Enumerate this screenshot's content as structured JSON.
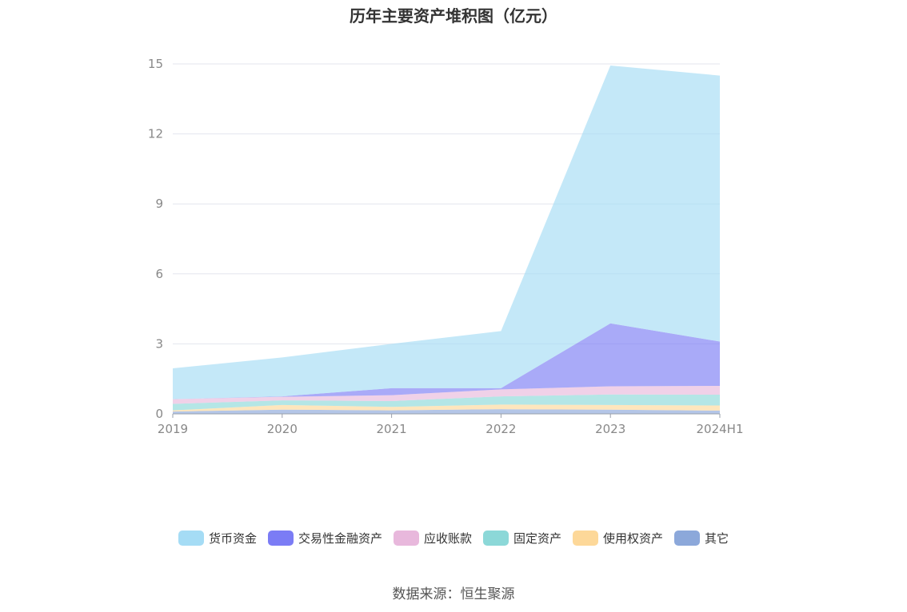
{
  "chart_data": {
    "type": "area",
    "stacked": true,
    "title": "历年主要资产堆积图（亿元）",
    "categories": [
      "2019",
      "2020",
      "2021",
      "2022",
      "2023",
      "2024H1"
    ],
    "ylim": [
      0,
      15
    ],
    "yticks": [
      0,
      3,
      6,
      9,
      12,
      15
    ],
    "grid": true,
    "legend_position": "bottom",
    "series": [
      {
        "name": "其它",
        "color": "#8ca8da",
        "values": [
          0.1,
          0.18,
          0.15,
          0.2,
          0.18,
          0.14
        ]
      },
      {
        "name": "使用权资产",
        "color": "#fdd899",
        "values": [
          0.05,
          0.2,
          0.15,
          0.2,
          0.2,
          0.22
        ]
      },
      {
        "name": "固定资产",
        "color": "#8cd8d8",
        "values": [
          0.28,
          0.2,
          0.25,
          0.35,
          0.45,
          0.46
        ]
      },
      {
        "name": "应收账款",
        "color": "#e8b8dc",
        "values": [
          0.2,
          0.15,
          0.25,
          0.3,
          0.35,
          0.38
        ]
      },
      {
        "name": "交易性金融资产",
        "color": "#7b7cf5",
        "values": [
          0.0,
          0.02,
          0.3,
          0.05,
          2.7,
          1.9
        ]
      },
      {
        "name": "货币资金",
        "color": "#a5dcf5",
        "values": [
          1.32,
          1.67,
          1.9,
          2.45,
          11.05,
          11.4
        ]
      }
    ],
    "legend_order": [
      "货币资金",
      "交易性金融资产",
      "应收账款",
      "固定资产",
      "使用权资产",
      "其它"
    ]
  },
  "legend": [
    {
      "label": "货币资金",
      "color": "#a5dcf5"
    },
    {
      "label": "交易性金融资产",
      "color": "#7b7cf5"
    },
    {
      "label": "应收账款",
      "color": "#e8b8dc"
    },
    {
      "label": "固定资产",
      "color": "#8cd8d8"
    },
    {
      "label": "使用权资产",
      "color": "#fdd899"
    },
    {
      "label": "其它",
      "color": "#8ca8da"
    }
  ],
  "source": "数据来源：恒生聚源"
}
